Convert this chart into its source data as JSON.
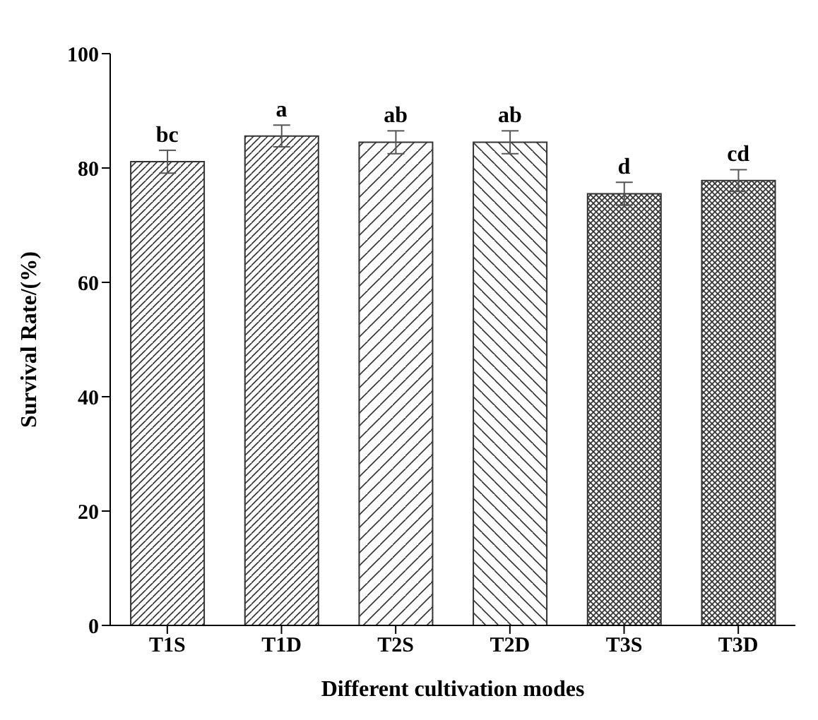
{
  "chart_data": {
    "type": "bar",
    "categories": [
      "T1S",
      "T1D",
      "T2S",
      "T2D",
      "T3S",
      "T3D"
    ],
    "values": [
      81.1,
      85.6,
      84.5,
      84.5,
      75.5,
      77.8
    ],
    "errors": [
      2.0,
      1.9,
      2.0,
      2.0,
      2.0,
      1.9
    ],
    "colors": [
      "#333333",
      "#333333",
      "#333333",
      "#333333",
      "#333333",
      "#333333"
    ],
    "xlabel": "Different cultivation modes",
    "ylabel": "Survival Rate/(%)",
    "ylim": [
      0,
      100
    ],
    "yticks": [
      0,
      20,
      40,
      60,
      80,
      100
    ],
    "grid": false,
    "legend": false,
    "annotations": [
      {
        "text": "bc",
        "x": "T1S",
        "y": 83.1
      },
      {
        "text": "a",
        "x": "T1D",
        "y": 87.5
      },
      {
        "text": "ab",
        "x": "T2S",
        "y": 86.5
      },
      {
        "text": "ab",
        "x": "T2D",
        "y": 86.5
      },
      {
        "text": "d",
        "x": "T3S",
        "y": 77.5
      },
      {
        "text": "cd",
        "x": "T3D",
        "y": 79.7
      }
    ]
  }
}
